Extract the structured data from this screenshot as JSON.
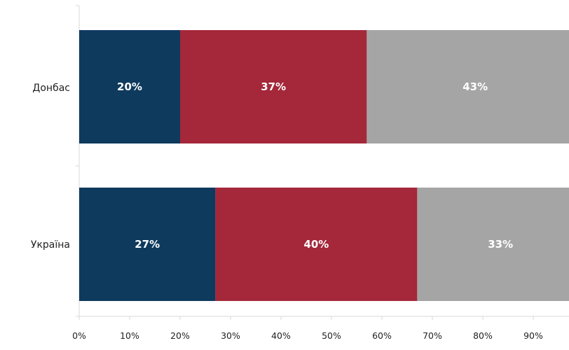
{
  "chart_data": {
    "type": "bar",
    "orientation": "horizontal",
    "stacked": true,
    "categories": [
      "Донбас",
      "Україна"
    ],
    "series": [
      {
        "values": [
          20,
          27
        ],
        "labels": [
          "20%",
          "27%"
        ],
        "color": "#0e3a5e"
      },
      {
        "values": [
          37,
          40
        ],
        "labels": [
          "37%",
          "40%"
        ],
        "color": "#a4283a"
      },
      {
        "values": [
          43,
          33
        ],
        "labels": [
          "43%",
          "33%"
        ],
        "color": "#a5a5a5"
      }
    ],
    "x_ticks": [
      "0%",
      "10%",
      "20%",
      "30%",
      "40%",
      "50%",
      "60%",
      "70%",
      "80%",
      "90%"
    ],
    "xlim": [
      0,
      100
    ],
    "grid": false,
    "legend": "none"
  }
}
